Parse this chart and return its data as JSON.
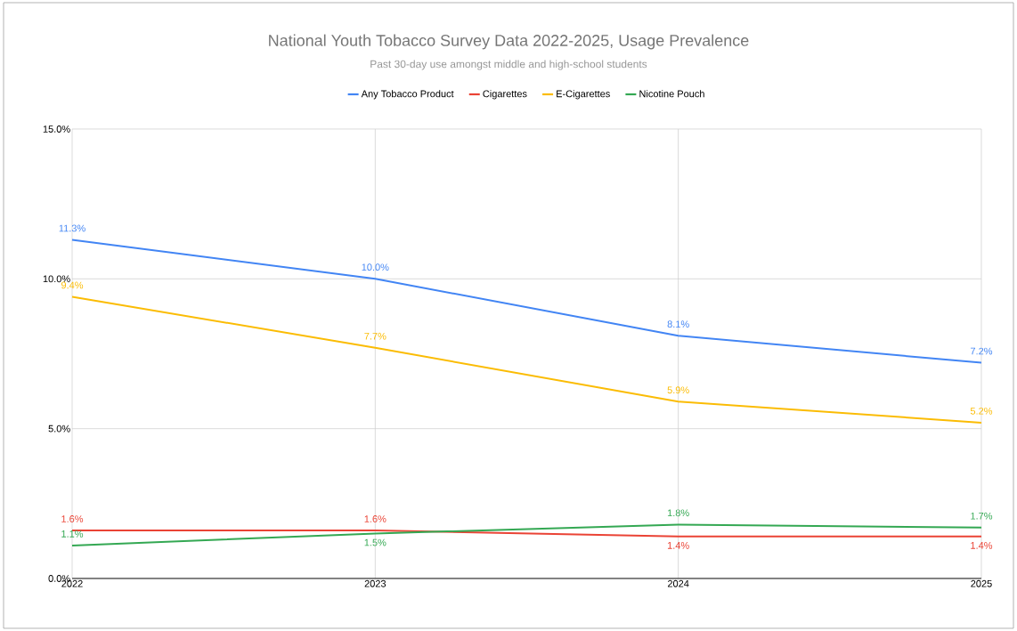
{
  "chart_data": {
    "type": "line",
    "title": "National Youth Tobacco Survey Data 2022-2025, Usage Prevalence",
    "subtitle": "Past 30-day use amongst middle and high-school students",
    "categories": [
      "2022",
      "2023",
      "2024",
      "2025"
    ],
    "series": [
      {
        "name": "Any Tobacco Product",
        "color": "#4285f4",
        "values": [
          11.3,
          10.0,
          8.1,
          7.2
        ],
        "value_labels": [
          "11.3%",
          "10.0%",
          "8.1%",
          "7.2%"
        ]
      },
      {
        "name": "Cigarettes",
        "color": "#ea4335",
        "values": [
          1.6,
          1.6,
          1.4,
          1.4
        ],
        "value_labels": [
          "1.6%",
          "1.6%",
          "1.4%",
          "1.4%"
        ]
      },
      {
        "name": "E-Cigarettes",
        "color": "#fbbc04",
        "values": [
          9.4,
          7.7,
          5.9,
          5.2
        ],
        "value_labels": [
          "9.4%",
          "7.7%",
          "5.9%",
          "5.2%"
        ]
      },
      {
        "name": "Nicotine Pouch",
        "color": "#34a853",
        "values": [
          1.1,
          1.5,
          1.8,
          1.7
        ],
        "value_labels": [
          "1.1%",
          "1.5%",
          "1.8%",
          "1.7%"
        ]
      }
    ],
    "ylim": [
      0,
      15
    ],
    "yticks": [
      {
        "value": 0,
        "label": "0.0%"
      },
      {
        "value": 5,
        "label": "5.0%"
      },
      {
        "value": 10,
        "label": "10.0%"
      },
      {
        "value": 15,
        "label": "15.0%"
      }
    ],
    "grid": true,
    "legend": "top",
    "marker": "none",
    "line_style": "solid"
  }
}
